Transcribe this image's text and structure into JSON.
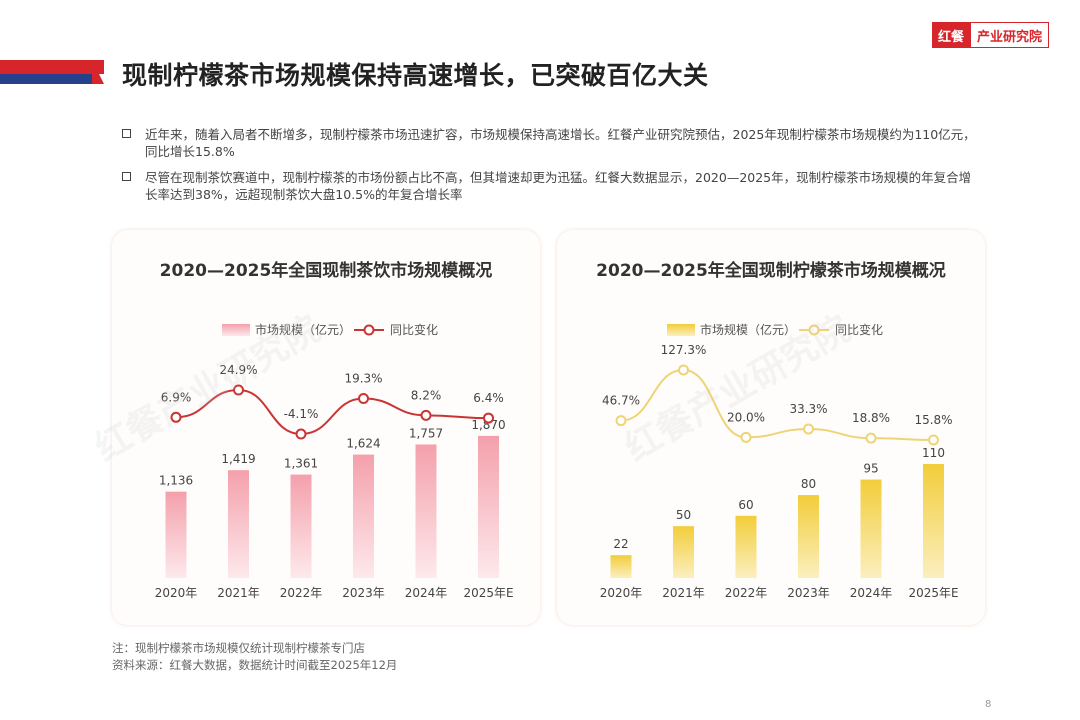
{
  "header": {
    "title": "现制柠檬茶市场规模保持高速增长，已突破百亿大关",
    "logo_a": "红餐",
    "logo_b": "产业研究院"
  },
  "bullets": [
    "近年来，随着入局者不断增多，现制柠檬茶市场迅速扩容，市场规模保持高速增长。红餐产业研究院预估，2025年现制柠檬茶市场规模约为110亿元，同比增长15.8%",
    "尽管在现制茶饮赛道中，现制柠檬茶的市场份额占比不高，但其增速却更为迅猛。红餐大数据显示，2020—2025年，现制柠檬茶市场规模的年复合增长率达到38%，远超现制茶饮大盘10.5%的年复合增长率"
  ],
  "notes": {
    "note": "注：现制柠檬茶市场规模仅统计现制柠檬茶专门店",
    "source": "资料来源：红餐大数据，数据统计时间截至2025年12月"
  },
  "watermark": "红餐产业研究院",
  "page_number": "8",
  "colors": {
    "accent_red": "#d7262b",
    "accent_blue": "#26408b",
    "chart1_bar": "#f4a0ab",
    "chart1_line": "#c93535",
    "chart2_bar": "#f2cd3a",
    "chart2_line": "#efd374"
  },
  "chart_data": [
    {
      "type": "bar",
      "title": "2020—2025年全国现制茶饮市场规模概况",
      "categories": [
        "2020年",
        "2021年",
        "2022年",
        "2023年",
        "2024年",
        "2025年E"
      ],
      "series": [
        {
          "name": "市场规模（亿元）",
          "kind": "bar",
          "values": [
            1136,
            1419,
            1361,
            1624,
            1757,
            1870
          ],
          "labels": [
            "1,136",
            "1,419",
            "1,361",
            "1,624",
            "1,757",
            "1,870"
          ]
        },
        {
          "name": "同比变化",
          "kind": "line",
          "values": [
            6.9,
            24.9,
            -4.1,
            19.3,
            8.2,
            6.4
          ],
          "labels": [
            "6.9%",
            "24.9%",
            "-4.1%",
            "19.3%",
            "8.2%",
            "6.4%"
          ]
        }
      ],
      "bar_range": [
        0,
        2500
      ],
      "line_range": [
        -4.1,
        24.9
      ],
      "legend": "top-left"
    },
    {
      "type": "bar",
      "title": "2020—2025年全国现制柠檬茶市场规模概况",
      "categories": [
        "2020年",
        "2021年",
        "2022年",
        "2023年",
        "2024年",
        "2025年E"
      ],
      "series": [
        {
          "name": "市场规模（亿元）",
          "kind": "bar",
          "values": [
            22,
            50,
            60,
            80,
            95,
            110
          ],
          "labels": [
            "22",
            "50",
            "60",
            "80",
            "95",
            "110"
          ]
        },
        {
          "name": "同比变化",
          "kind": "line",
          "values": [
            46.7,
            127.3,
            20.0,
            33.3,
            18.8,
            15.8
          ],
          "labels": [
            "46.7%",
            "127.3%",
            "20.0%",
            "33.3%",
            "18.8%",
            "15.8%"
          ]
        }
      ],
      "bar_range": [
        0,
        110
      ],
      "line_range": [
        15.8,
        127.3
      ],
      "legend": "top-left"
    }
  ]
}
